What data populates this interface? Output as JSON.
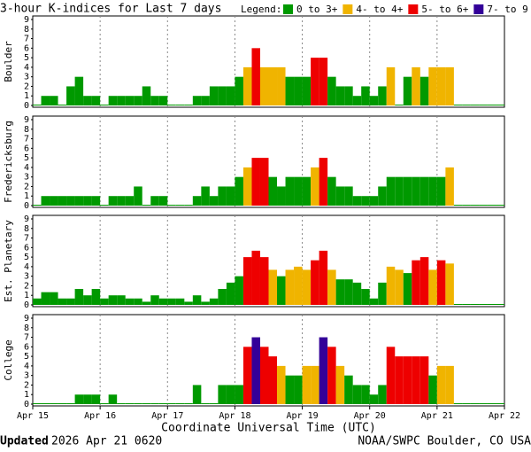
{
  "title": "3-hour K-indices for Last 7 days",
  "legend": {
    "label": "Legend:",
    "items": [
      {
        "label": "0 to 3+",
        "color": "#009900",
        "from": 0
      },
      {
        "label": "4- to 4+",
        "color": "#f0b400",
        "from": 3.67
      },
      {
        "label": "5- to 6+",
        "color": "#ee0000",
        "from": 4.67
      },
      {
        "label": "7- to 9",
        "color": "#330099",
        "from": 6.67
      }
    ]
  },
  "footer": {
    "updated_label": "Updated",
    "updated": "2026 Apr 21 0620",
    "credit": "NOAA/SWPC Boulder, CO USA"
  },
  "chart_data": [
    {
      "type": "bar",
      "ylabel": "Boulder",
      "ylim": [
        0,
        9
      ],
      "yticks": [
        0,
        1,
        2,
        3,
        4,
        5,
        6,
        7,
        8,
        9
      ],
      "values": [
        0,
        1,
        1,
        0,
        2,
        3,
        1,
        1,
        0,
        1,
        1,
        1,
        1,
        2,
        1,
        1,
        0,
        0,
        0,
        1,
        1,
        2,
        2,
        2,
        3,
        4,
        6,
        4,
        4,
        4,
        3,
        3,
        3,
        5,
        5,
        3,
        2,
        2,
        1,
        2,
        1,
        2,
        4,
        0,
        3,
        4,
        3,
        4,
        4,
        4,
        0,
        0,
        0,
        0,
        0,
        0
      ]
    },
    {
      "type": "bar",
      "ylabel": "Fredericksburg",
      "ylim": [
        0,
        9
      ],
      "yticks": [
        0,
        1,
        2,
        3,
        4,
        5,
        6,
        7,
        8,
        9
      ],
      "values": [
        0,
        1,
        1,
        1,
        1,
        1,
        1,
        1,
        0,
        1,
        1,
        1,
        2,
        0,
        1,
        1,
        0,
        0,
        0,
        1,
        2,
        1,
        2,
        2,
        3,
        4,
        5,
        5,
        3,
        2,
        3,
        3,
        3,
        4,
        5,
        3,
        2,
        2,
        1,
        1,
        1,
        2,
        3,
        3,
        3,
        3,
        3,
        3,
        3,
        4,
        0,
        0,
        0,
        0,
        0,
        0
      ]
    },
    {
      "type": "bar",
      "ylabel": "Est. Planetary",
      "ylim": [
        0,
        9
      ],
      "yticks": [
        0,
        1,
        2,
        3,
        4,
        5,
        6,
        7,
        8,
        9
      ],
      "values": [
        0.67,
        1.33,
        1.33,
        0.67,
        0.67,
        1.67,
        1,
        1.67,
        0.67,
        1,
        1,
        0.67,
        0.67,
        0.33,
        1,
        0.67,
        0.67,
        0.67,
        0.33,
        1,
        0.33,
        0.67,
        1.67,
        2.33,
        3,
        5,
        5.67,
        5,
        3.67,
        3,
        3.67,
        4,
        3.67,
        4.67,
        5.67,
        3.67,
        2.67,
        2.67,
        2.33,
        1.67,
        0.67,
        2.33,
        4,
        3.67,
        3.33,
        4.67,
        5,
        3.67,
        4.67,
        4.33,
        0,
        0,
        0,
        0,
        0,
        0
      ]
    },
    {
      "type": "bar",
      "ylabel": "College",
      "ylim": [
        0,
        9
      ],
      "yticks": [
        0,
        1,
        2,
        3,
        4,
        5,
        6,
        7,
        8,
        9
      ],
      "values": [
        0,
        0,
        0,
        0,
        0,
        1,
        1,
        1,
        0,
        1,
        0,
        0,
        0,
        0,
        0,
        0,
        0,
        0,
        0,
        2,
        0,
        0,
        2,
        2,
        2,
        6,
        7,
        6,
        5,
        4,
        3,
        3,
        4,
        4,
        7,
        6,
        4,
        3,
        2,
        2,
        1,
        2,
        6,
        5,
        5,
        5,
        5,
        3,
        4,
        4,
        0,
        0,
        0,
        0,
        0,
        0
      ],
      "xticks": [
        "Apr 15",
        "Apr 16",
        "Apr 17",
        "Apr 18",
        "Apr 19",
        "Apr 20",
        "Apr 21",
        "Apr 22"
      ],
      "xlabel": "Coordinate Universal Time (UTC)"
    }
  ]
}
